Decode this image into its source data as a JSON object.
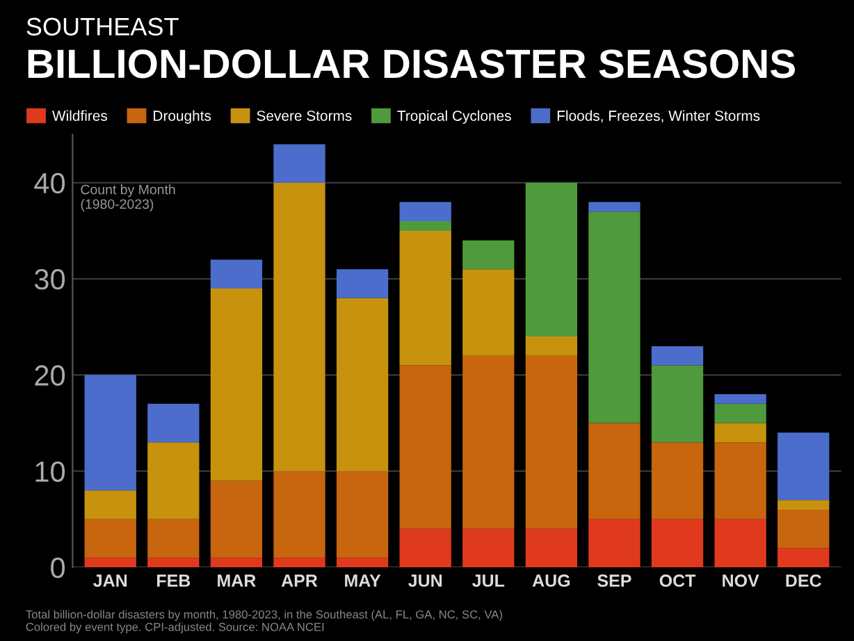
{
  "chart_data": {
    "type": "bar",
    "stacked": true,
    "subtitle": "SOUTHEAST",
    "title": "BILLION-DOLLAR DISASTER SEASONS",
    "categories": [
      "JAN",
      "FEB",
      "MAR",
      "APR",
      "MAY",
      "JUN",
      "JUL",
      "AUG",
      "SEP",
      "OCT",
      "NOV",
      "DEC"
    ],
    "series": [
      {
        "name": "Wildfires",
        "color": "#e03a1e",
        "values": [
          1,
          1,
          1,
          1,
          1,
          4,
          4,
          4,
          5,
          5,
          5,
          2
        ]
      },
      {
        "name": "Droughts",
        "color": "#c8650f",
        "values": [
          4,
          4,
          8,
          9,
          9,
          17,
          18,
          18,
          10,
          8,
          8,
          4
        ]
      },
      {
        "name": "Severe Storms",
        "color": "#c7930f",
        "values": [
          3,
          8,
          20,
          30,
          18,
          14,
          9,
          2,
          0,
          0,
          2,
          1
        ]
      },
      {
        "name": "Tropical Cyclones",
        "color": "#4f9a3c",
        "values": [
          0,
          0,
          0,
          0,
          0,
          1,
          3,
          16,
          22,
          8,
          2,
          0
        ]
      },
      {
        "name": "Floods, Freezes, Winter Storms",
        "color": "#4d6dcc",
        "values": [
          12,
          4,
          3,
          4,
          3,
          2,
          0,
          0,
          1,
          2,
          1,
          7
        ]
      }
    ],
    "ylim": [
      0,
      45
    ],
    "yticks": [
      0,
      10,
      20,
      30,
      40
    ],
    "grid": "y",
    "legend": "top",
    "annotations": [
      "Count by Month\n(1980-2023)",
      "Total billion-dollar disasters by month, 1980-2023, in the Southeast (AL, FL, GA, NC, SC, VA)\nColored by event type. CPI-adjusted. Source: NOAA NCEI"
    ]
  }
}
